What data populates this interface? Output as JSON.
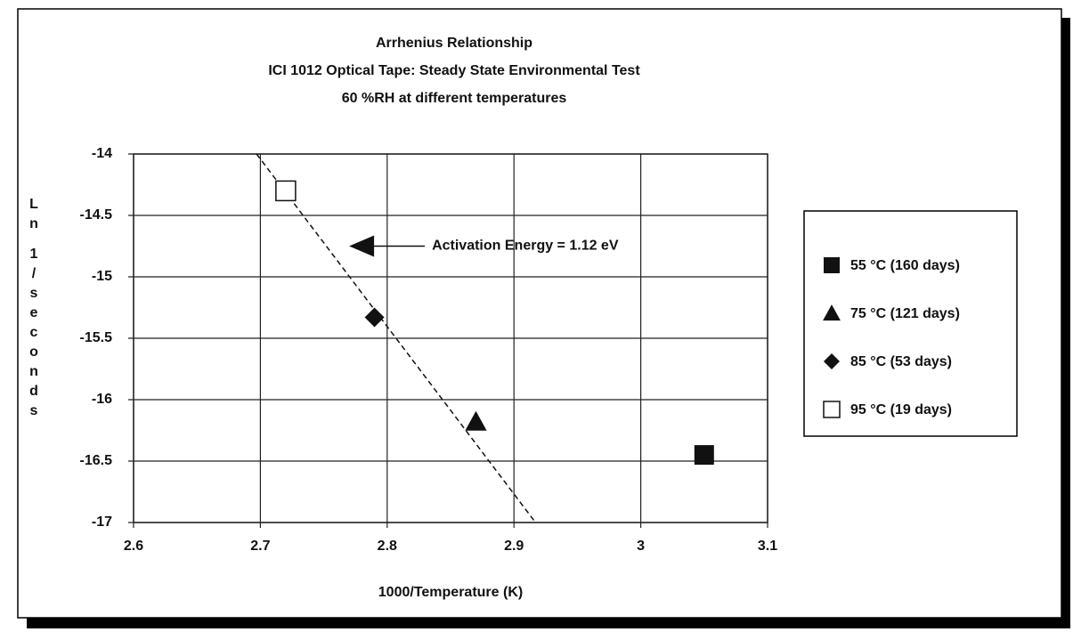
{
  "chart_data": {
    "type": "scatter",
    "title": "Arrhenius Relationship",
    "subtitle": [
      "ICI 1012 Optical Tape:  Steady State Environmental Test",
      "60 %RH at different temperatures"
    ],
    "x_label": "1000/Temperature (K)",
    "y_label": "Ln 1/seconds",
    "xlim": [
      2.6,
      3.1
    ],
    "ylim": [
      -17,
      -14
    ],
    "xticks": [
      2.6,
      2.7,
      2.8,
      2.9,
      3,
      3.1
    ],
    "yticks": [
      -14,
      -14.5,
      -15,
      -15.5,
      -16,
      -16.5,
      -17
    ],
    "grid": true,
    "legend": "right",
    "series": [
      {
        "name": "55 °C  (160 days)",
        "marker": "square",
        "color": "#111",
        "x": [
          3.05
        ],
        "values": [
          -16.45
        ]
      },
      {
        "name": "75 °C  (121 days)",
        "marker": "triangle",
        "color": "#111",
        "x": [
          2.87
        ],
        "values": [
          -16.18
        ]
      },
      {
        "name": "85 °C  (53 days)",
        "marker": "diamond",
        "color": "#111",
        "x": [
          2.79
        ],
        "values": [
          -15.33
        ]
      },
      {
        "name": "95 °C  (19 days)",
        "marker": "open-square",
        "color": "#111",
        "x": [
          2.72
        ],
        "values": [
          -14.3
        ]
      }
    ],
    "trendline": {
      "x": [
        2.697,
        2.917
      ],
      "values": [
        -14,
        -17
      ]
    },
    "annotation": {
      "text": "Activation Energy = 1.12 eV",
      "x": 2.77,
      "y": -14.75
    }
  }
}
